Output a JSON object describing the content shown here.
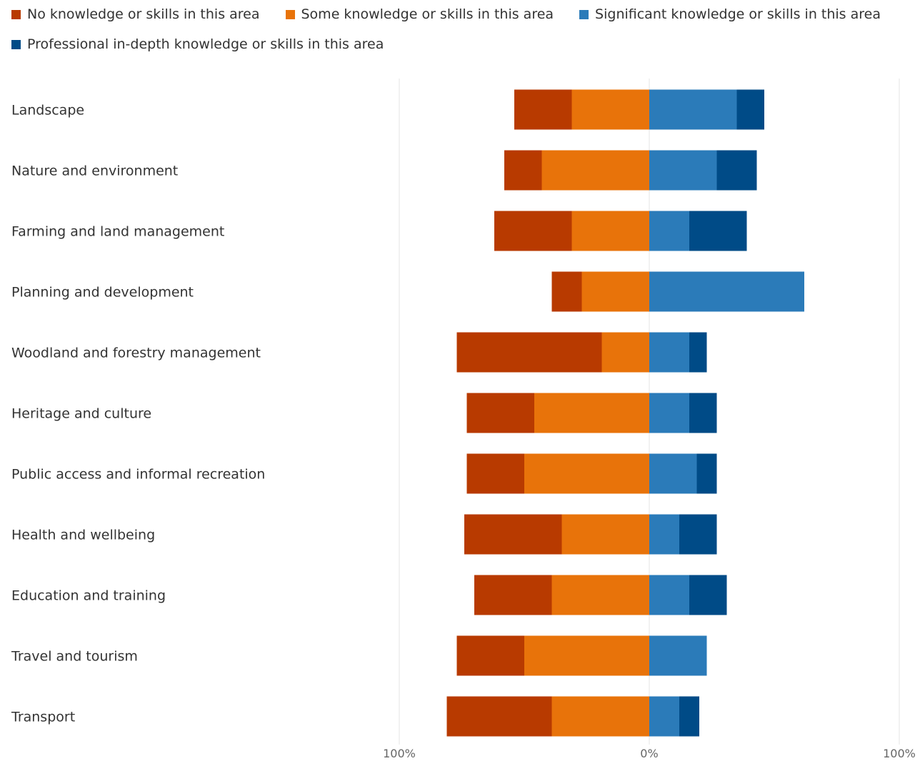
{
  "chart_data": {
    "type": "bar",
    "orientation": "horizontal",
    "stacking": "diverging",
    "categories": [
      "Landscape",
      "Nature and environment",
      "Farming and land management",
      "Planning and development",
      "Woodland and forestry management",
      "Heritage and culture",
      "Public access and informal recreation",
      "Health and wellbeing",
      "Education and training",
      "Travel and tourism",
      "Transport"
    ],
    "series": [
      {
        "name": "No knowledge or skills in this area",
        "color": "#B83A00",
        "side": "negative",
        "values": [
          23,
          15,
          31,
          12,
          58,
          27,
          23,
          39,
          31,
          27,
          42
        ]
      },
      {
        "name": "Some knowledge or skills in this area",
        "color": "#E8730A",
        "side": "negative",
        "values": [
          31,
          43,
          31,
          27,
          19,
          46,
          50,
          35,
          39,
          50,
          39
        ]
      },
      {
        "name": "Significant knowledge or skills in this area",
        "color": "#2B7BB9",
        "side": "positive",
        "values": [
          35,
          27,
          16,
          62,
          16,
          16,
          19,
          12,
          16,
          23,
          12
        ]
      },
      {
        "name": "Professional in-depth knowledge or skills in this area",
        "color": "#004B87",
        "side": "positive",
        "values": [
          11,
          16,
          23,
          0,
          7,
          11,
          8,
          15,
          15,
          0,
          8
        ]
      }
    ],
    "xlim": [
      -100,
      100
    ],
    "x_ticks": [
      "100%",
      "0%",
      "100%"
    ],
    "legend_position": "top-left",
    "grid": true
  }
}
